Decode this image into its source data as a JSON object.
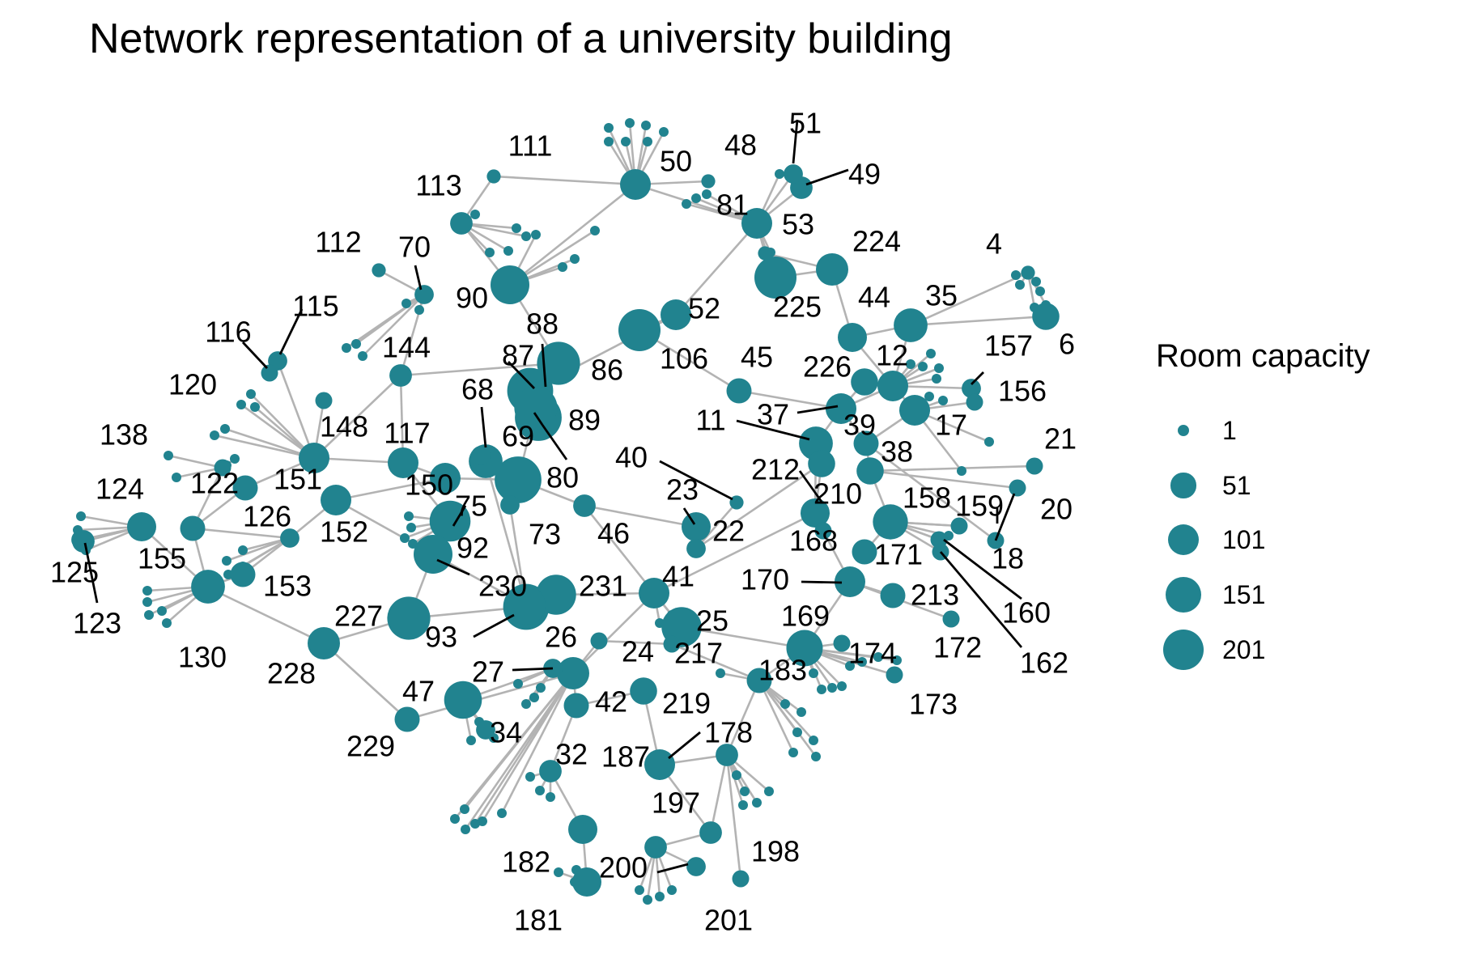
{
  "title": "Network representation of a university building",
  "colors": {
    "node": "#21838f",
    "edge": "#b3b3b3",
    "callout": "#000000",
    "label": "#000000"
  },
  "legend": {
    "title": "Room capacity",
    "entries": [
      {
        "label": "1",
        "capacity": 1
      },
      {
        "label": "51",
        "capacity": 51
      },
      {
        "label": "101",
        "capacity": 101
      },
      {
        "label": "151",
        "capacity": 151
      },
      {
        "label": "201",
        "capacity": 201
      }
    ]
  },
  "nodes": [
    {
      "id": "50",
      "label": "50",
      "capacity": 60
    },
    {
      "id": "48",
      "label": "48",
      "capacity": 1
    },
    {
      "id": "51",
      "label": "51",
      "capacity": 10
    },
    {
      "id": "49",
      "label": "49",
      "capacity": 20
    },
    {
      "id": "111",
      "label": "111",
      "capacity": 1
    },
    {
      "id": "113",
      "label": "113",
      "capacity": 20
    },
    {
      "id": "81",
      "label": "81",
      "capacity": 60
    },
    {
      "id": "53",
      "label": "53",
      "capacity": 1
    },
    {
      "id": "112",
      "label": "112",
      "capacity": 1
    },
    {
      "id": "70",
      "label": "70",
      "capacity": 10
    },
    {
      "id": "90",
      "label": "90",
      "capacity": 120
    },
    {
      "id": "224",
      "label": "224",
      "capacity": 70
    },
    {
      "id": "225",
      "label": "225",
      "capacity": 150
    },
    {
      "id": "4",
      "label": "4",
      "capacity": 1
    },
    {
      "id": "115",
      "label": "115",
      "capacity": 10
    },
    {
      "id": "116",
      "label": "116",
      "capacity": 5
    },
    {
      "id": "52",
      "label": "52",
      "capacity": 60
    },
    {
      "id": "44",
      "label": "44",
      "capacity": 50
    },
    {
      "id": "35",
      "label": "35",
      "capacity": 80
    },
    {
      "id": "6",
      "label": "6",
      "capacity": 40
    },
    {
      "id": "144",
      "label": "144",
      "capacity": 20
    },
    {
      "id": "106",
      "label": "106",
      "capacity": 150
    },
    {
      "id": "88",
      "label": "88",
      "capacity": 160
    },
    {
      "id": "86",
      "label": "86",
      "capacity": 190
    },
    {
      "id": "87",
      "label": "87",
      "capacity": 200
    },
    {
      "id": "226",
      "label": "226",
      "capacity": 40
    },
    {
      "id": "12",
      "label": "12",
      "capacity": 60
    },
    {
      "id": "157",
      "label": "157",
      "capacity": 10
    },
    {
      "id": "45",
      "label": "45",
      "capacity": 30
    },
    {
      "id": "120",
      "label": "120",
      "capacity": 5
    },
    {
      "id": "156",
      "label": "156",
      "capacity": 5
    },
    {
      "id": "68",
      "label": "68",
      "capacity": 10
    },
    {
      "id": "89",
      "label": "89",
      "capacity": 160
    },
    {
      "id": "37",
      "label": "37",
      "capacity": 60
    },
    {
      "id": "11",
      "label": "11",
      "capacity": 80
    },
    {
      "id": "39",
      "label": "39",
      "capacity": 30
    },
    {
      "id": "17",
      "label": "17",
      "capacity": 60
    },
    {
      "id": "148",
      "label": "148",
      "capacity": 60
    },
    {
      "id": "117",
      "label": "117",
      "capacity": 60
    },
    {
      "id": "69",
      "label": "69",
      "capacity": 80
    },
    {
      "id": "21",
      "label": "21",
      "capacity": 5
    },
    {
      "id": "138",
      "label": "138",
      "capacity": 5
    },
    {
      "id": "40",
      "label": "40",
      "capacity": 1
    },
    {
      "id": "38",
      "label": "38",
      "capacity": 40
    },
    {
      "id": "80",
      "label": "80",
      "capacity": 200
    },
    {
      "id": "151",
      "label": "151",
      "capacity": 30
    },
    {
      "id": "212",
      "label": "212",
      "capacity": 40
    },
    {
      "id": "150",
      "label": "150",
      "capacity": 60
    },
    {
      "id": "124",
      "label": "124",
      "capacity": 50
    },
    {
      "id": "210",
      "label": "210",
      "capacity": 50
    },
    {
      "id": "23",
      "label": "23",
      "capacity": 50
    },
    {
      "id": "158",
      "label": "158",
      "capacity": 90
    },
    {
      "id": "159",
      "label": "159",
      "capacity": 5
    },
    {
      "id": "20",
      "label": "20",
      "capacity": 5
    },
    {
      "id": "122",
      "label": "122",
      "capacity": 30
    },
    {
      "id": "126",
      "label": "126",
      "capacity": 10
    },
    {
      "id": "75",
      "label": "75",
      "capacity": 140
    },
    {
      "id": "73",
      "label": "73",
      "capacity": 10
    },
    {
      "id": "46",
      "label": "46",
      "capacity": 20
    },
    {
      "id": "22",
      "label": "22",
      "capacity": 10
    },
    {
      "id": "152",
      "label": "152",
      "capacity": 60
    },
    {
      "id": "168",
      "label": "168",
      "capacity": 5
    },
    {
      "id": "171",
      "label": "171",
      "capacity": 30
    },
    {
      "id": "18",
      "label": "18",
      "capacity": 5
    },
    {
      "id": "155",
      "label": "155",
      "capacity": 40
    },
    {
      "id": "92",
      "label": "92",
      "capacity": 120
    },
    {
      "id": "125",
      "label": "125",
      "capacity": 10
    },
    {
      "id": "153",
      "label": "153",
      "capacity": 30
    },
    {
      "id": "230",
      "label": "230",
      "capacity": 120
    },
    {
      "id": "231",
      "label": "231",
      "capacity": 130
    },
    {
      "id": "41",
      "label": "41",
      "capacity": 60
    },
    {
      "id": "170",
      "label": "170",
      "capacity": 60
    },
    {
      "id": "213",
      "label": "213",
      "capacity": 30
    },
    {
      "id": "160",
      "label": "160",
      "capacity": 5
    },
    {
      "id": "123",
      "label": "123",
      "capacity": 20
    },
    {
      "id": "227",
      "label": "227",
      "capacity": 160
    },
    {
      "id": "25",
      "label": "25",
      "capacity": 130
    },
    {
      "id": "169",
      "label": "169",
      "capacity": 100
    },
    {
      "id": "172",
      "label": "172",
      "capacity": 5
    },
    {
      "id": "93",
      "label": "93",
      "capacity": 190
    },
    {
      "id": "26",
      "label": "26",
      "capacity": 70
    },
    {
      "id": "130",
      "label": "130",
      "capacity": 80
    },
    {
      "id": "228",
      "label": "228",
      "capacity": 70
    },
    {
      "id": "24",
      "label": "24",
      "capacity": 5
    },
    {
      "id": "217",
      "label": "217",
      "capacity": 5
    },
    {
      "id": "174",
      "label": "174",
      "capacity": 5
    },
    {
      "id": "162",
      "label": "162",
      "capacity": 5
    },
    {
      "id": "183",
      "label": "183",
      "capacity": 30
    },
    {
      "id": "27",
      "label": "27",
      "capacity": 10
    },
    {
      "id": "47",
      "label": "47",
      "capacity": 110
    },
    {
      "id": "42",
      "label": "42",
      "capacity": 30
    },
    {
      "id": "219",
      "label": "219",
      "capacity": 40
    },
    {
      "id": "173",
      "label": "173",
      "capacity": 5
    },
    {
      "id": "34",
      "label": "34",
      "capacity": 10
    },
    {
      "id": "178",
      "label": "178",
      "capacity": 20
    },
    {
      "id": "229",
      "label": "229",
      "capacity": 30
    },
    {
      "id": "32",
      "label": "32",
      "capacity": 20
    },
    {
      "id": "187",
      "label": "187",
      "capacity": 60
    },
    {
      "id": "197",
      "label": "197",
      "capacity": 20
    },
    {
      "id": "182",
      "label": "182",
      "capacity": 50
    },
    {
      "id": "198",
      "label": "198",
      "capacity": 5
    },
    {
      "id": "200",
      "label": "200",
      "capacity": 20
    },
    {
      "id": "181",
      "label": "181",
      "capacity": 50
    },
    {
      "id": "201",
      "label": "201",
      "capacity": 10
    }
  ],
  "edges": [
    [
      "50",
      "81"
    ],
    [
      "50",
      "90"
    ],
    [
      "50",
      "111"
    ],
    [
      "81",
      "53"
    ],
    [
      "53",
      "224"
    ],
    [
      "81",
      "52"
    ],
    [
      "52",
      "106"
    ],
    [
      "106",
      "45"
    ],
    [
      "45",
      "37"
    ],
    [
      "37",
      "12"
    ],
    [
      "12",
      "35"
    ],
    [
      "35",
      "4"
    ],
    [
      "35",
      "6"
    ],
    [
      "12",
      "157"
    ],
    [
      "12",
      "17"
    ],
    [
      "224",
      "44"
    ],
    [
      "44",
      "35"
    ],
    [
      "44",
      "12"
    ],
    [
      "113",
      "90"
    ],
    [
      "90",
      "88"
    ],
    [
      "88",
      "86"
    ],
    [
      "86",
      "87"
    ],
    [
      "87",
      "89"
    ],
    [
      "89",
      "80"
    ],
    [
      "80",
      "69"
    ],
    [
      "69",
      "68"
    ],
    [
      "70",
      "144"
    ],
    [
      "112",
      "70"
    ],
    [
      "144",
      "148"
    ],
    [
      "144",
      "117"
    ],
    [
      "115",
      "116"
    ],
    [
      "115",
      "148"
    ],
    [
      "120",
      "148"
    ],
    [
      "148",
      "151"
    ],
    [
      "148",
      "117"
    ],
    [
      "117",
      "150"
    ],
    [
      "150",
      "80"
    ],
    [
      "138",
      "122"
    ],
    [
      "122",
      "151"
    ],
    [
      "124",
      "155"
    ],
    [
      "124",
      "125"
    ],
    [
      "125",
      "123"
    ],
    [
      "155",
      "122"
    ],
    [
      "155",
      "130"
    ],
    [
      "122",
      "126"
    ],
    [
      "126",
      "152"
    ],
    [
      "126",
      "153"
    ],
    [
      "153",
      "130"
    ],
    [
      "152",
      "92"
    ],
    [
      "150",
      "152"
    ],
    [
      "117",
      "75"
    ],
    [
      "75",
      "92"
    ],
    [
      "92",
      "230"
    ],
    [
      "230",
      "93"
    ],
    [
      "231",
      "41"
    ],
    [
      "231",
      "93"
    ],
    [
      "93",
      "227"
    ],
    [
      "227",
      "228"
    ],
    [
      "228",
      "155"
    ],
    [
      "228",
      "229"
    ],
    [
      "229",
      "26"
    ],
    [
      "227",
      "92"
    ],
    [
      "80",
      "73"
    ],
    [
      "73",
      "93"
    ],
    [
      "80",
      "46"
    ],
    [
      "46",
      "41"
    ],
    [
      "46",
      "23"
    ],
    [
      "23",
      "22"
    ],
    [
      "22",
      "40"
    ],
    [
      "22",
      "212"
    ],
    [
      "212",
      "210"
    ],
    [
      "210",
      "11"
    ],
    [
      "11",
      "37"
    ],
    [
      "37",
      "39"
    ],
    [
      "39",
      "38"
    ],
    [
      "38",
      "158"
    ],
    [
      "158",
      "159"
    ],
    [
      "158",
      "160"
    ],
    [
      "158",
      "162"
    ],
    [
      "158",
      "171"
    ],
    [
      "38",
      "21"
    ],
    [
      "38",
      "20"
    ],
    [
      "39",
      "17"
    ],
    [
      "17",
      "156"
    ],
    [
      "39",
      "18"
    ],
    [
      "210",
      "168"
    ],
    [
      "168",
      "170"
    ],
    [
      "170",
      "213"
    ],
    [
      "170",
      "172"
    ],
    [
      "170",
      "169"
    ],
    [
      "169",
      "174"
    ],
    [
      "169",
      "173"
    ],
    [
      "169",
      "183"
    ],
    [
      "41",
      "25"
    ],
    [
      "25",
      "169"
    ],
    [
      "41",
      "26"
    ],
    [
      "26",
      "24"
    ],
    [
      "24",
      "217"
    ],
    [
      "26",
      "27"
    ],
    [
      "27",
      "47"
    ],
    [
      "47",
      "34"
    ],
    [
      "26",
      "42"
    ],
    [
      "42",
      "32"
    ],
    [
      "32",
      "182"
    ],
    [
      "182",
      "181"
    ],
    [
      "42",
      "219"
    ],
    [
      "219",
      "187"
    ],
    [
      "187",
      "197"
    ],
    [
      "197",
      "200"
    ],
    [
      "200",
      "201"
    ],
    [
      "178",
      "198"
    ],
    [
      "178",
      "197"
    ],
    [
      "183",
      "178"
    ],
    [
      "187",
      "178"
    ],
    [
      "217",
      "183"
    ],
    [
      "41",
      "210"
    ],
    [
      "230",
      "69"
    ],
    [
      "86",
      "52"
    ],
    [
      "88",
      "144"
    ],
    [
      "113",
      "111"
    ],
    [
      "51",
      "81"
    ],
    [
      "49",
      "81"
    ],
    [
      "48",
      "50"
    ],
    [
      "225",
      "224"
    ],
    [
      "225",
      "81"
    ],
    [
      "226",
      "37"
    ]
  ]
}
